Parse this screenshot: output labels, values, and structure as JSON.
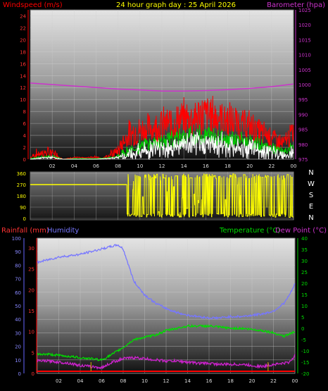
{
  "header": {
    "title": "24 hour graph day : 25 April 2026",
    "wind_label": "Windspeed (m/s)",
    "baro_label": "Barometer (hpa)",
    "rain_label": "Rainfall (mm)",
    "humidity_label": "Humidity",
    "temp_label": "Temperature (°C)",
    "dew_label": "Dew Point (°C)"
  },
  "colors": {
    "gust": "#ff0000",
    "avg": "#00cc00",
    "wind": "#ffffff",
    "baro": "#cc33cc",
    "dir": "#ffff00",
    "temp": "#00dd00",
    "dew": "#cc22cc",
    "humidity": "#7777ff",
    "rain": "#ff0000"
  },
  "chart_data": [
    {
      "type": "line",
      "name": "wind-baro",
      "x_ticks": [
        "02",
        "04",
        "06",
        "08",
        "10",
        "12",
        "14",
        "16",
        "18",
        "20",
        "22",
        "00"
      ],
      "y_left_ticks": [
        0,
        2,
        4,
        6,
        8,
        10,
        12,
        14,
        16,
        18,
        20,
        22,
        24
      ],
      "y_right_ticks": [
        975,
        980,
        985,
        990,
        995,
        1000,
        1005,
        1010,
        1015,
        1020,
        1025
      ],
      "ylim_left": [
        0,
        25
      ],
      "ylim_right": [
        975,
        1025
      ],
      "xlim": [
        0,
        24
      ],
      "barometer": {
        "x": [
          0,
          2,
          4,
          6,
          8,
          10,
          12,
          14,
          16,
          18,
          20,
          22,
          24
        ],
        "y": [
          1000.5,
          1000.0,
          999.5,
          999.0,
          998.5,
          998.2,
          997.8,
          997.8,
          998.0,
          998.3,
          998.7,
          999.3,
          1000.2
        ]
      },
      "gust_envelope": {
        "x": [
          0,
          0.5,
          1,
          2,
          2.5,
          3,
          4,
          5,
          6,
          6.5,
          7,
          7.5,
          8,
          8.5,
          9,
          10,
          11,
          12,
          13,
          14,
          15,
          16,
          17,
          18,
          19,
          20,
          21,
          22,
          23,
          23.5,
          24
        ],
        "y": [
          0.3,
          0.8,
          1.0,
          1.1,
          0.5,
          0,
          0.3,
          0.2,
          0.4,
          0.1,
          0.6,
          0.8,
          1.5,
          3,
          4.3,
          4.8,
          5.3,
          5.8,
          6.0,
          6.8,
          7.0,
          7.5,
          7.2,
          6.5,
          6.0,
          5.5,
          4.5,
          3.8,
          2.5,
          3.5,
          4.5
        ]
      },
      "avg_envelope": {
        "x": [
          0,
          1,
          2,
          3,
          4,
          6,
          7,
          8,
          9,
          10,
          11,
          12,
          13,
          14,
          15,
          16,
          17,
          18,
          19,
          20,
          21,
          22,
          23,
          23.5,
          24
        ],
        "y": [
          0.1,
          0.4,
          0.5,
          0,
          0.1,
          0.1,
          0.2,
          0.5,
          1.5,
          2.2,
          2.6,
          3.0,
          3.2,
          3.6,
          3.8,
          4.0,
          3.8,
          3.5,
          3.1,
          2.8,
          2.2,
          1.8,
          1.2,
          1.5,
          2.2
        ]
      },
      "wind_envelope": {
        "x": [
          0,
          1,
          2,
          3,
          4,
          6,
          7,
          8,
          9,
          10,
          11,
          12,
          13,
          14,
          15,
          16,
          17,
          18,
          19,
          20,
          21,
          22,
          23,
          23.5,
          24
        ],
        "y": [
          0,
          0.2,
          0.3,
          0,
          0,
          0,
          0.1,
          0.3,
          0.8,
          1.3,
          1.6,
          1.9,
          2.0,
          2.3,
          2.5,
          2.6,
          2.5,
          2.3,
          2.0,
          1.8,
          1.4,
          1.1,
          0.7,
          0.9,
          1.3
        ]
      }
    },
    {
      "type": "line",
      "name": "wind-direction",
      "y_ticks": [
        0,
        90,
        180,
        270,
        360
      ],
      "ylim": [
        0,
        360
      ],
      "compass": [
        "N",
        "W",
        "S",
        "E",
        "N"
      ],
      "segments": [
        {
          "x0": 0,
          "x1": 8.8,
          "value": 270
        },
        {
          "x0": 8.8,
          "x1": 24,
          "value": "variable"
        }
      ]
    },
    {
      "type": "line",
      "name": "temp-hum-rain",
      "y_left_ticks": [
        0,
        10,
        20,
        30,
        40,
        50,
        60,
        70,
        80,
        90,
        100
      ],
      "y_rain_ticks": [
        0,
        5,
        10,
        15,
        20,
        25,
        30
      ],
      "y_right_ticks": [
        -20,
        -15,
        -10,
        -5,
        0,
        5,
        10,
        15,
        20,
        25,
        30,
        35,
        40
      ],
      "ylim_hum": [
        0,
        100
      ],
      "ylim_temp": [
        -20,
        40
      ],
      "humidity": {
        "x": [
          0,
          1,
          2,
          3,
          4,
          5,
          6,
          7,
          7.5,
          8,
          8.5,
          9,
          10,
          11,
          12,
          13,
          14,
          15,
          16,
          17,
          18,
          19,
          20,
          21,
          22,
          23,
          23.5,
          24
        ],
        "y": [
          82,
          84,
          86,
          87,
          88,
          90,
          92,
          94,
          95,
          92,
          80,
          68,
          58,
          52,
          48,
          45,
          43,
          42,
          41,
          41,
          42,
          42,
          43,
          44,
          46,
          52,
          58,
          66
        ]
      },
      "temperature": {
        "x": [
          0,
          1,
          2,
          3,
          4,
          5,
          6,
          7,
          8,
          9,
          10,
          11,
          12,
          13,
          14,
          15,
          16,
          17,
          18,
          19,
          20,
          21,
          22,
          23,
          23.5,
          24
        ],
        "y": [
          -11.5,
          -11.5,
          -12,
          -12.5,
          -13,
          -13.5,
          -14,
          -11.5,
          -8.5,
          -5,
          -4,
          -3,
          -1,
          0,
          1,
          1,
          1,
          0.5,
          0,
          0,
          -0.5,
          -1,
          -2,
          -3.5,
          -2.5,
          -1.5
        ]
      },
      "dew_point": {
        "x": [
          0,
          1,
          2,
          3,
          4,
          5,
          6,
          7,
          8,
          9,
          10,
          11,
          12,
          13,
          14,
          15,
          16,
          17,
          18,
          19,
          20,
          21,
          22,
          23,
          23.5,
          24
        ],
        "y": [
          -14.5,
          -14.5,
          -15,
          -15.5,
          -16.5,
          -17,
          -17.5,
          -15,
          -13.5,
          -13,
          -13.5,
          -14,
          -14.5,
          -14.5,
          -15,
          -15.5,
          -15.5,
          -16,
          -16,
          -16,
          -16.5,
          -17,
          -16,
          -15.5,
          -15,
          -12
        ]
      },
      "rain_ticks_at": [
        5.0,
        21.5
      ]
    }
  ]
}
